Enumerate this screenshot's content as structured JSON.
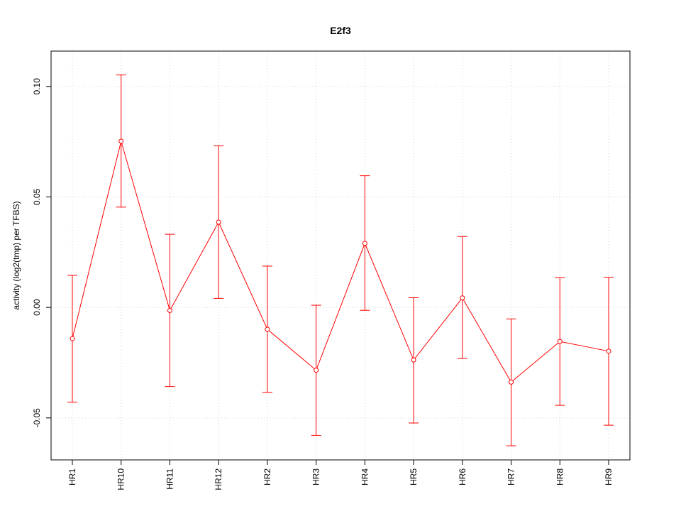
{
  "chart_data": {
    "type": "line",
    "title": "E2f3",
    "xlabel": "",
    "ylabel": "activity (log2(tmp) per TFBS)",
    "ylim": [
      -0.069,
      0.116
    ],
    "yticks": [
      "-0.05",
      "0.00",
      "0.05",
      "0.10"
    ],
    "ytick_values": [
      -0.05,
      0.0,
      0.05,
      0.1
    ],
    "grid": true,
    "series_color": "#ff0000",
    "categories": [
      "HR1",
      "HR10",
      "HR11",
      "HR12",
      "HR2",
      "HR3",
      "HR4",
      "HR5",
      "HR6",
      "HR7",
      "HR8",
      "HR9"
    ],
    "series": [
      {
        "values": [
          -0.0141,
          0.0752,
          -0.0014,
          0.0386,
          -0.0099,
          -0.0284,
          0.029,
          -0.0238,
          0.0043,
          -0.0338,
          -0.0154,
          -0.0198
        ],
        "lower": [
          -0.0429,
          0.0454,
          -0.0358,
          0.0041,
          -0.0385,
          -0.0579,
          -0.0013,
          -0.0523,
          -0.0231,
          -0.0626,
          -0.0443,
          -0.0533
        ],
        "upper": [
          0.0145,
          0.1052,
          0.0331,
          0.0731,
          0.0187,
          0.001,
          0.0596,
          0.0044,
          0.0321,
          -0.0052,
          0.0135,
          0.0136
        ]
      }
    ]
  }
}
